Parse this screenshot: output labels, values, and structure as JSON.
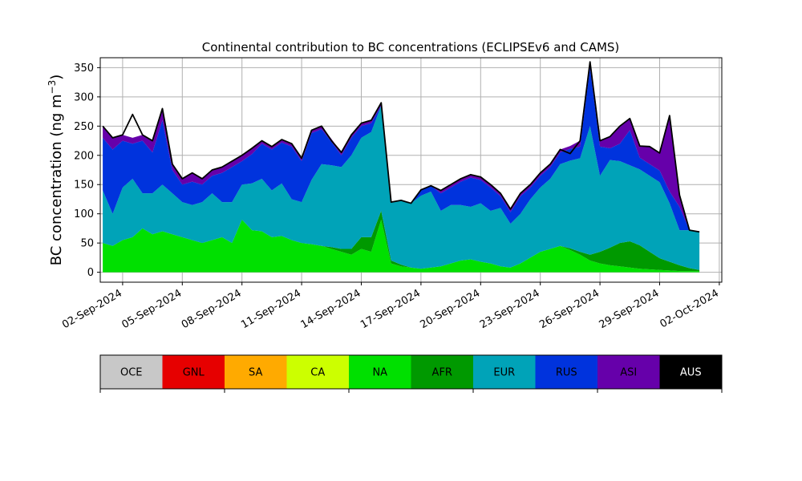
{
  "chart_data": {
    "type": "area",
    "title": "Continental contribution to BC concentrations (ECLIPSEv6 and CAMS)",
    "ylabel_main": "BC concentration (ng m",
    "ylabel_sup": "−3",
    "ylabel_end": ")",
    "ylim": [
      -17,
      367
    ],
    "yticks": [
      0,
      50,
      100,
      150,
      200,
      250,
      300,
      350
    ],
    "xlim": [
      "2024-08-31T21:00",
      "2024-10-02T03:00"
    ],
    "xticks": [
      "02-Sep-2024",
      "05-Sep-2024",
      "08-Sep-2024",
      "11-Sep-2024",
      "14-Sep-2024",
      "17-Sep-2024",
      "20-Sep-2024",
      "23-Sep-2024",
      "26-Sep-2024",
      "29-Sep-2024",
      "02-Oct-2024"
    ],
    "grid": true,
    "stacked": true,
    "x": [
      "2024-09-01T00:00",
      "2024-09-01T12:00",
      "2024-09-02T00:00",
      "2024-09-02T12:00",
      "2024-09-03T00:00",
      "2024-09-03T12:00",
      "2024-09-04T00:00",
      "2024-09-04T12:00",
      "2024-09-05T00:00",
      "2024-09-05T12:00",
      "2024-09-06T00:00",
      "2024-09-06T12:00",
      "2024-09-07T00:00",
      "2024-09-07T12:00",
      "2024-09-08T00:00",
      "2024-09-08T12:00",
      "2024-09-09T00:00",
      "2024-09-09T12:00",
      "2024-09-10T00:00",
      "2024-09-10T12:00",
      "2024-09-11T00:00",
      "2024-09-11T12:00",
      "2024-09-12T00:00",
      "2024-09-12T12:00",
      "2024-09-13T00:00",
      "2024-09-13T12:00",
      "2024-09-14T00:00",
      "2024-09-14T12:00",
      "2024-09-15T00:00",
      "2024-09-15T12:00",
      "2024-09-16T00:00",
      "2024-09-16T12:00",
      "2024-09-17T00:00",
      "2024-09-17T12:00",
      "2024-09-18T00:00",
      "2024-09-18T12:00",
      "2024-09-19T00:00",
      "2024-09-19T12:00",
      "2024-09-20T00:00",
      "2024-09-20T12:00",
      "2024-09-21T00:00",
      "2024-09-21T12:00",
      "2024-09-22T00:00",
      "2024-09-22T12:00",
      "2024-09-23T00:00",
      "2024-09-23T12:00",
      "2024-09-24T00:00",
      "2024-09-24T12:00",
      "2024-09-25T00:00",
      "2024-09-25T12:00",
      "2024-09-26T00:00",
      "2024-09-26T12:00",
      "2024-09-27T00:00",
      "2024-09-27T12:00",
      "2024-09-28T00:00",
      "2024-09-28T12:00",
      "2024-09-29T00:00",
      "2024-09-29T12:00",
      "2024-09-30T00:00",
      "2024-09-30T12:00",
      "2024-10-01T00:00"
    ],
    "series": [
      {
        "name": "OCE",
        "color": "#c8c8c8",
        "values": [
          0,
          0,
          0,
          0,
          0,
          0,
          0,
          0,
          0,
          0,
          0,
          0,
          0,
          0,
          0,
          0,
          0,
          0,
          0,
          0,
          0,
          0,
          0,
          0,
          0,
          0,
          0,
          0,
          0,
          0,
          0,
          0,
          0,
          0,
          0,
          0,
          0,
          0,
          0,
          0,
          0,
          0,
          0,
          0,
          0,
          0,
          0,
          0,
          0,
          0,
          0,
          0,
          0,
          0,
          0,
          0,
          0,
          0,
          0,
          0,
          0
        ]
      },
      {
        "name": "GNL",
        "color": "#e60000",
        "values": [
          0,
          0,
          0,
          0,
          0,
          0,
          0,
          0,
          0,
          0,
          0,
          0,
          0,
          0,
          0,
          0,
          0,
          0,
          0,
          0,
          0,
          0,
          0,
          0,
          0,
          0,
          0,
          0,
          0,
          0,
          0,
          0,
          0,
          0,
          0,
          0,
          0,
          0,
          0,
          0,
          0,
          0,
          0,
          0,
          0,
          0,
          0,
          0,
          0,
          0,
          0,
          0,
          0,
          0,
          0,
          0,
          0,
          0,
          0,
          0,
          0
        ]
      },
      {
        "name": "SA",
        "color": "#ffaa00",
        "values": [
          0,
          0,
          0,
          0,
          0,
          0,
          0,
          0,
          0,
          0,
          0,
          0,
          0,
          0,
          0,
          0,
          0,
          0,
          0,
          0,
          0,
          0,
          0,
          0,
          0,
          0,
          0,
          0,
          0,
          0,
          0,
          0,
          0,
          0,
          0,
          0,
          0,
          0,
          0,
          0,
          0,
          0,
          0,
          0,
          0,
          0,
          0,
          0,
          0,
          0,
          0,
          0,
          0,
          0,
          0,
          0,
          0,
          0,
          0,
          0,
          0
        ]
      },
      {
        "name": "CA",
        "color": "#ccff00",
        "values": [
          0,
          0,
          0,
          0,
          0,
          0,
          0,
          0,
          0,
          0,
          0,
          0,
          0,
          0,
          0,
          0,
          0,
          0,
          0,
          0,
          0,
          0,
          0,
          0,
          0,
          0,
          0,
          0,
          0,
          0,
          0,
          0,
          0,
          0,
          0,
          0,
          0,
          0,
          0,
          0,
          0,
          0,
          0,
          0,
          0,
          0,
          0,
          0,
          0,
          0,
          0,
          0,
          0,
          0,
          0,
          0,
          0,
          0,
          0,
          0,
          0
        ]
      },
      {
        "name": "NA",
        "color": "#00e000",
        "values": [
          50,
          45,
          55,
          60,
          75,
          65,
          70,
          65,
          60,
          55,
          50,
          55,
          60,
          50,
          90,
          72,
          70,
          60,
          62,
          55,
          50,
          48,
          45,
          40,
          35,
          30,
          40,
          35,
          90,
          15,
          10,
          8,
          6,
          8,
          10,
          15,
          20,
          22,
          18,
          15,
          10,
          8,
          15,
          25,
          35,
          40,
          45,
          38,
          30,
          20,
          15,
          12,
          10,
          8,
          6,
          5,
          4,
          3,
          2,
          2,
          2
        ]
      },
      {
        "name": "AFR",
        "color": "#009900",
        "values": [
          0,
          0,
          0,
          0,
          0,
          0,
          0,
          0,
          0,
          0,
          0,
          0,
          0,
          0,
          0,
          0,
          0,
          0,
          0,
          0,
          0,
          0,
          0,
          3,
          5,
          10,
          20,
          25,
          15,
          5,
          3,
          0,
          0,
          0,
          0,
          0,
          0,
          0,
          0,
          0,
          0,
          0,
          0,
          0,
          0,
          0,
          0,
          3,
          5,
          10,
          20,
          30,
          40,
          45,
          40,
          30,
          20,
          15,
          10,
          5,
          2
        ]
      },
      {
        "name": "EUR",
        "color": "#00a3b8",
        "values": [
          90,
          55,
          90,
          100,
          60,
          70,
          80,
          70,
          60,
          60,
          70,
          80,
          60,
          70,
          60,
          80,
          90,
          80,
          90,
          70,
          70,
          110,
          140,
          140,
          140,
          160,
          170,
          180,
          180,
          100,
          110,
          110,
          125,
          130,
          95,
          100,
          95,
          90,
          100,
          90,
          100,
          75,
          85,
          100,
          110,
          120,
          140,
          150,
          160,
          220,
          130,
          150,
          140,
          130,
          130,
          130,
          130,
          100,
          60,
          65,
          65
        ]
      },
      {
        "name": "RUS",
        "color": "#0033dd",
        "values": [
          90,
          110,
          80,
          60,
          90,
          70,
          110,
          40,
          30,
          40,
          30,
          30,
          50,
          60,
          40,
          50,
          60,
          70,
          70,
          90,
          70,
          80,
          60,
          40,
          20,
          30,
          20,
          15,
          0,
          0,
          0,
          0,
          10,
          10,
          30,
          30,
          40,
          50,
          40,
          40,
          20,
          20,
          30,
          20,
          20,
          20,
          20,
          20,
          20,
          100,
          50,
          20,
          30,
          60,
          20,
          20,
          20,
          20,
          40,
          0,
          0
        ]
      },
      {
        "name": "ASI",
        "color": "#6600aa",
        "values": [
          20,
          20,
          10,
          10,
          10,
          20,
          20,
          10,
          10,
          15,
          10,
          10,
          10,
          10,
          10,
          10,
          5,
          5,
          5,
          5,
          5,
          5,
          5,
          5,
          5,
          5,
          5,
          5,
          5,
          0,
          0,
          0,
          0,
          0,
          5,
          5,
          5,
          5,
          5,
          5,
          5,
          5,
          5,
          5,
          5,
          5,
          5,
          5,
          10,
          10,
          10,
          20,
          30,
          20,
          20,
          30,
          30,
          130,
          20,
          0,
          0
        ]
      },
      {
        "name": "AUS",
        "color": "#000000",
        "values": [
          0,
          0,
          0,
          0,
          0,
          0,
          0,
          0,
          0,
          0,
          0,
          0,
          0,
          0,
          0,
          0,
          0,
          0,
          0,
          0,
          0,
          0,
          0,
          0,
          0,
          0,
          0,
          0,
          0,
          0,
          0,
          0,
          0,
          0,
          0,
          0,
          0,
          0,
          0,
          0,
          0,
          0,
          0,
          0,
          0,
          0,
          0,
          0,
          0,
          0,
          0,
          0,
          0,
          0,
          0,
          0,
          0,
          0,
          0,
          0,
          0
        ]
      }
    ],
    "total": {
      "name": "total",
      "color": "#000000",
      "values": [
        250,
        230,
        235,
        270,
        235,
        225,
        280,
        185,
        160,
        170,
        160,
        175,
        180,
        190,
        200,
        212,
        225,
        215,
        227,
        220,
        195,
        243,
        250,
        225,
        205,
        235,
        255,
        260,
        290,
        120,
        123,
        118,
        141,
        148,
        140,
        150,
        160,
        167,
        163,
        150,
        135,
        108,
        135,
        150,
        170,
        185,
        210,
        203,
        225,
        360,
        225,
        232,
        250,
        263,
        216,
        215,
        204,
        268,
        132,
        72,
        69
      ]
    },
    "legend_labels": [
      "OCE",
      "GNL",
      "SA",
      "CA",
      "NA",
      "AFR",
      "EUR",
      "RUS",
      "ASI",
      "AUS"
    ],
    "legend_text_colors": [
      "#000000",
      "#000000",
      "#000000",
      "#000000",
      "#000000",
      "#000000",
      "#000000",
      "#000000",
      "#000000",
      "#ffffff"
    ]
  }
}
